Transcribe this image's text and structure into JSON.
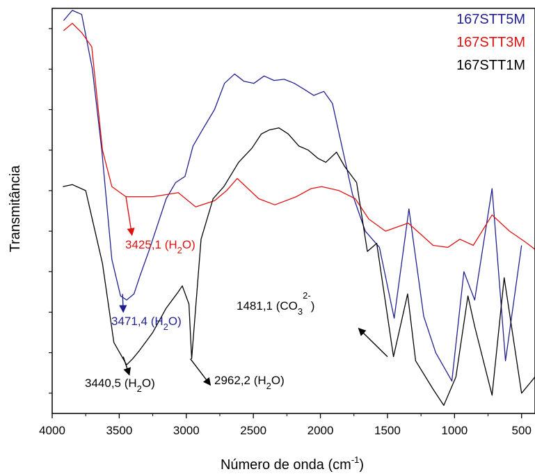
{
  "chart_data": {
    "type": "line",
    "title": "",
    "xlabel": {
      "prefix": "Número de onda (cm",
      "sup": "-1",
      "suffix": ")"
    },
    "ylabel": "Transmitância",
    "xlim": [
      4000,
      400
    ],
    "x_reversed": true,
    "ylim": [
      0,
      100
    ],
    "y_tick_labels_shown": false,
    "grid": false,
    "legend_position": "top-right",
    "x_ticks": [
      4000,
      3500,
      3000,
      2500,
      2000,
      1500,
      1000,
      500
    ],
    "y_ticks": [
      5,
      15,
      25,
      35,
      45,
      55,
      65,
      75,
      85,
      95
    ],
    "series": [
      {
        "name": "167STT5M",
        "color": "#1f1f8f",
        "x": [
          3915,
          3850,
          3780,
          3700,
          3630,
          3555,
          3490,
          3445,
          3390,
          3345,
          3280,
          3220,
          3150,
          3080,
          3010,
          2950,
          2880,
          2790,
          2715,
          2640,
          2570,
          2495,
          2420,
          2345,
          2270,
          2195,
          2120,
          2050,
          1975,
          1910,
          1840,
          1760,
          1665,
          1560,
          1450,
          1340,
          1230,
          1140,
          1020,
          930,
          850,
          720,
          620,
          500
        ],
        "y": [
          97,
          99.5,
          98.5,
          85,
          65,
          38,
          29,
          28,
          29.5,
          34,
          40,
          46,
          53,
          57,
          58.5,
          66,
          70,
          75,
          81.5,
          83.8,
          82,
          81.5,
          83.3,
          82.2,
          82.5,
          81.5,
          80,
          78.5,
          79.5,
          76.5,
          66,
          54,
          45,
          41,
          23.5,
          50.5,
          24,
          15,
          8,
          35,
          28,
          55.5,
          13,
          41.5
        ]
      },
      {
        "name": "167STT3M",
        "color": "#e01010",
        "x": [
          3915,
          3850,
          3780,
          3705,
          3625,
          3555,
          3450,
          3380,
          3250,
          3060,
          2930,
          2790,
          2700,
          2620,
          2460,
          2340,
          2180,
          2070,
          1990,
          1860,
          1740,
          1640,
          1515,
          1345,
          1160,
          1050,
          960,
          860,
          720,
          590,
          480,
          400
        ],
        "y": [
          94.5,
          96.3,
          94,
          90.5,
          65,
          56,
          53.5,
          53.5,
          53.5,
          54.5,
          51,
          52.5,
          55,
          58,
          53,
          51.5,
          53.5,
          55.5,
          56,
          55,
          53,
          48,
          45,
          47,
          41.5,
          41,
          43,
          41.5,
          49,
          45,
          42.5,
          40.5
        ]
      },
      {
        "name": "167STT1M",
        "color": "#000000",
        "x": [
          3920,
          3850,
          3750,
          3625,
          3540,
          3445,
          3400,
          3350,
          3250,
          3150,
          3060,
          3030,
          2980,
          2960,
          2890,
          2800,
          2720,
          2610,
          2510,
          2440,
          2380,
          2310,
          2240,
          2160,
          2090,
          2020,
          1960,
          1880,
          1820,
          1730,
          1650,
          1580,
          1455,
          1350,
          1290,
          1160,
          1080,
          990,
          900,
          850,
          720,
          630,
          500,
          400
        ],
        "y": [
          56,
          56.5,
          55,
          37,
          17.5,
          12,
          13.5,
          15.5,
          20,
          26,
          30,
          31.5,
          27,
          13.5,
          43,
          53,
          56,
          62,
          65.5,
          69,
          70,
          70.5,
          69,
          66,
          65,
          63,
          62,
          64.5,
          61,
          57,
          40,
          42,
          14,
          29.5,
          13,
          6,
          2,
          9,
          29,
          21.5,
          4.5,
          33.5,
          5,
          9
        ]
      }
    ],
    "annotations": [
      {
        "text": {
          "main": "3425,1 (H",
          "sub": "2",
          "after": "O)"
        },
        "color": "#e01010",
        "arrow_from": [
          3450,
          53.5
        ],
        "arrow_to": [
          3405,
          44
        ]
      },
      {
        "text": {
          "main": "3471,4 (H",
          "sub": "2",
          "after": "O)"
        },
        "color": "#1f1f8f",
        "arrow_from": [
          3475,
          29.5
        ],
        "arrow_to": [
          3470,
          25
        ]
      },
      {
        "text": {
          "main": "3440,5 (H",
          "sub": "2",
          "after": "O)"
        },
        "color": "#000000",
        "arrow_from": [
          3470,
          14
        ],
        "arrow_to": [
          3425,
          9.5
        ]
      },
      {
        "text": {
          "main": "2962,2 (H",
          "sub": "2",
          "after": "O)"
        },
        "color": "#000000",
        "arrow_from": [
          2970,
          13.5
        ],
        "arrow_to": [
          2820,
          7
        ]
      },
      {
        "text": {
          "main": "1481,1 (CO",
          "sub": "3",
          "sup": "2-",
          "after": ")"
        },
        "color": "#000000",
        "arrow_from": [
          1500,
          14
        ],
        "arrow_to": [
          1715,
          21
        ]
      }
    ]
  }
}
